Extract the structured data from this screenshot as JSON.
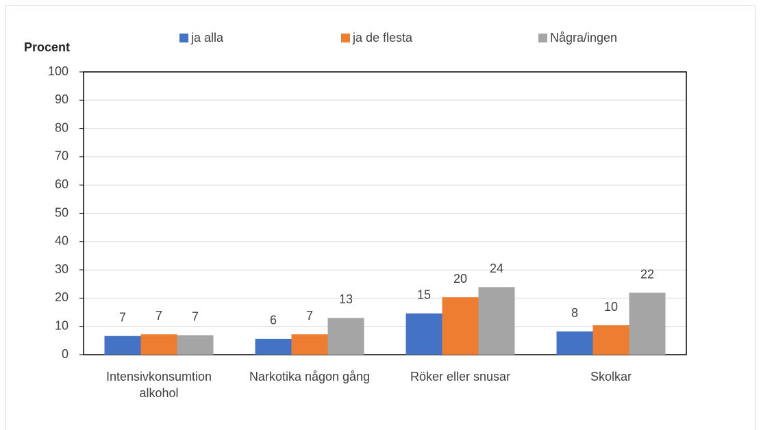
{
  "chart_data": {
    "type": "bar",
    "y_label": "Procent",
    "categories": [
      "Intensivkonsumtion alkohol",
      "Narkotika någon gång",
      "Röker eller snusar",
      "Skolkar"
    ],
    "series": [
      {
        "name": "ja alla",
        "color": "#4472c4",
        "values": [
          6.6,
          5.6,
          14.6,
          8.2
        ],
        "value_labels": [
          "7",
          "6",
          "15",
          "8"
        ]
      },
      {
        "name": "ja de flesta",
        "color": "#ed7d31",
        "values": [
          7.2,
          7.2,
          20.3,
          10.4
        ],
        "value_labels": [
          "7",
          "7",
          "20",
          "10"
        ]
      },
      {
        "name": "Några/ingen",
        "color": "#a5a5a5",
        "values": [
          6.9,
          13.0,
          23.9,
          21.9
        ],
        "value_labels": [
          "7",
          "13",
          "24",
          "22"
        ]
      }
    ],
    "ylim": [
      0,
      100
    ],
    "yticks": [
      0,
      10,
      20,
      30,
      40,
      50,
      60,
      70,
      80,
      90,
      100
    ],
    "grid": true
  }
}
